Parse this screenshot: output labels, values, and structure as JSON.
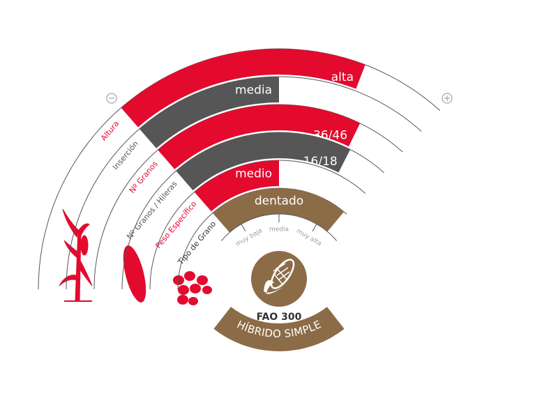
{
  "rings": [
    {
      "label": "Altura",
      "value": "alta"
    },
    {
      "label": "Inserción",
      "value": "media"
    },
    {
      "label": "Nº Granos",
      "value": "36/46"
    },
    {
      "label": "Nº Granos / Hileras",
      "value": "16/18"
    },
    {
      "label": "Peso Específico",
      "value": "medio"
    },
    {
      "label": "Tipo de Grano",
      "value": "dentado"
    }
  ],
  "scale": {
    "labels": [
      "muy baja",
      "media",
      "muy alta"
    ]
  },
  "product": {
    "fao": "FAO 300",
    "type": "HÍBRIDO SIMPLE"
  }
}
